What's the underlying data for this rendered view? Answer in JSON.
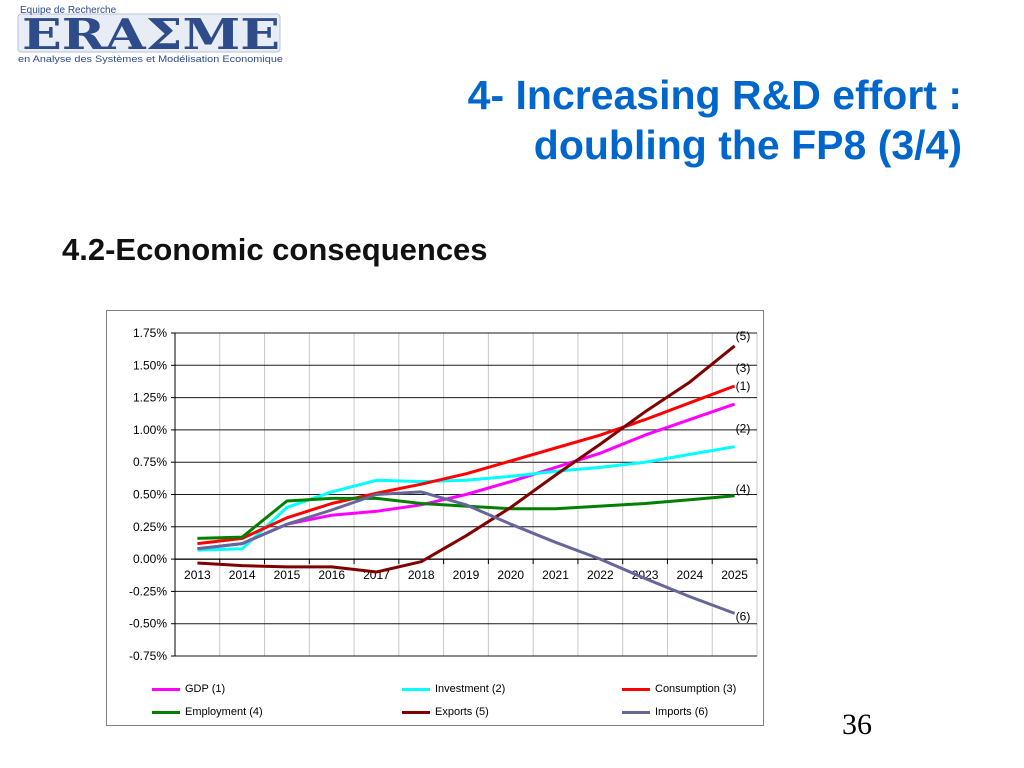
{
  "logo": {
    "top_text": "Equipe de Recherche",
    "name": "ERAΣME",
    "tagline": "en Analyse des Systèmes et Modélisation Economique",
    "color": "#2e4b8a"
  },
  "title": {
    "line1": "4- Increasing R&D effort :",
    "line2": "doubling the FP8 (3/4)",
    "color": "#0066cc"
  },
  "subtitle": "4.2-Economic consequences",
  "page_number": "36",
  "chart_data": {
    "type": "line",
    "x": [
      "2013",
      "2014",
      "2015",
      "2016",
      "2017",
      "2018",
      "2019",
      "2020",
      "2021",
      "2022",
      "2023",
      "2024",
      "2025"
    ],
    "ylim": [
      -0.75,
      1.75
    ],
    "yticks": [
      "-0.75%",
      "-0.50%",
      "-0.25%",
      "0.00%",
      "0.25%",
      "0.50%",
      "0.75%",
      "1.00%",
      "1.25%",
      "1.50%",
      "1.75%"
    ],
    "ytick_values": [
      -0.75,
      -0.5,
      -0.25,
      0,
      0.25,
      0.5,
      0.75,
      1.0,
      1.25,
      1.5,
      1.75
    ],
    "grid": true,
    "legend_position": "bottom",
    "series": [
      {
        "name": "GDP (1)",
        "end_label": "(1)",
        "color": "#ff00ff",
        "values": [
          0.08,
          0.12,
          0.27,
          0.34,
          0.37,
          0.42,
          0.5,
          0.6,
          0.71,
          0.82,
          0.96,
          1.08,
          1.2
        ]
      },
      {
        "name": "Investment (2)",
        "end_label": "(2)",
        "color": "#00ffff",
        "values": [
          0.07,
          0.08,
          0.4,
          0.52,
          0.61,
          0.6,
          0.61,
          0.64,
          0.68,
          0.71,
          0.75,
          0.81,
          0.87
        ]
      },
      {
        "name": "Consumption (3)",
        "end_label": "(3)",
        "color": "#ff0000",
        "values": [
          0.12,
          0.16,
          0.32,
          0.43,
          0.51,
          0.58,
          0.66,
          0.76,
          0.86,
          0.96,
          1.08,
          1.21,
          1.34
        ]
      },
      {
        "name": "Employment (4)",
        "end_label": "(4)",
        "color": "#008000",
        "values": [
          0.16,
          0.17,
          0.45,
          0.47,
          0.47,
          0.43,
          0.41,
          0.39,
          0.39,
          0.41,
          0.43,
          0.46,
          0.49
        ]
      },
      {
        "name": "Exports (5)",
        "end_label": "(5)",
        "color": "#800000",
        "values": [
          -0.03,
          -0.05,
          -0.06,
          -0.06,
          -0.1,
          -0.02,
          0.18,
          0.4,
          0.65,
          0.89,
          1.14,
          1.37,
          1.65
        ]
      },
      {
        "name": "Imports (6)",
        "end_label": "(6)",
        "color": "#666699",
        "values": [
          0.08,
          0.12,
          0.27,
          0.38,
          0.5,
          0.52,
          0.42,
          0.27,
          0.13,
          0.0,
          -0.15,
          -0.29,
          -0.42
        ]
      }
    ]
  }
}
